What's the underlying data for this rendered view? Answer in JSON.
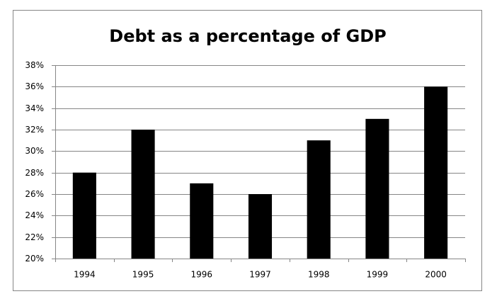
{
  "chart_data": {
    "type": "bar",
    "title": "Debt as a percentage of GDP",
    "categories": [
      "1994",
      "1995",
      "1996",
      "1997",
      "1998",
      "1999",
      "2000"
    ],
    "values": [
      28,
      32,
      27,
      26,
      31,
      33,
      36
    ],
    "color": "#000000",
    "ylim": [
      20,
      38
    ],
    "yticks": [
      {
        "value": 20,
        "label": "20%"
      },
      {
        "value": 22,
        "label": "22%"
      },
      {
        "value": 24,
        "label": "24%"
      },
      {
        "value": 26,
        "label": "26%"
      },
      {
        "value": 28,
        "label": "28%"
      },
      {
        "value": 30,
        "label": "30%"
      },
      {
        "value": 32,
        "label": "32%"
      },
      {
        "value": 34,
        "label": "34%"
      },
      {
        "value": 36,
        "label": "36%"
      },
      {
        "value": 38,
        "label": "38%"
      }
    ],
    "grid": true
  }
}
